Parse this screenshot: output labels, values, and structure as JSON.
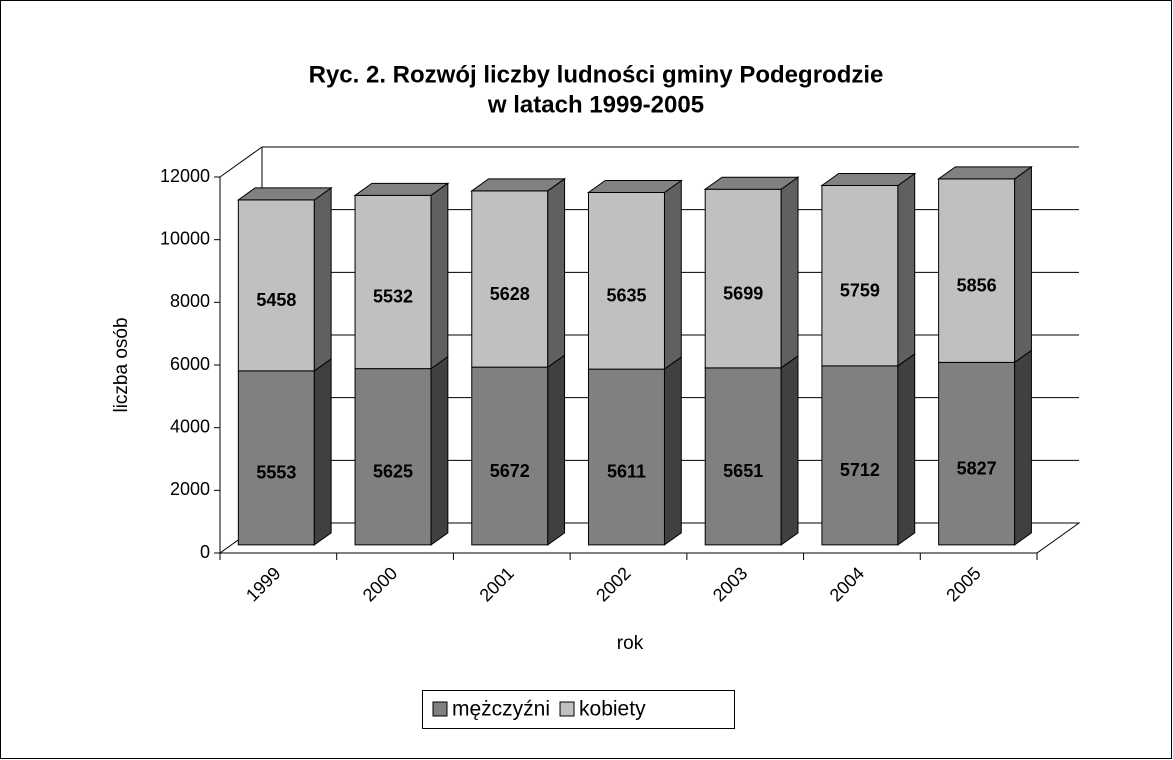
{
  "chart_data": {
    "type": "bar3d_stacked",
    "title": [
      "Ryc. 2. Rozwój liczby ludności gminy Podegrodzie",
      "w latach 1999-2005"
    ],
    "xlabel": "rok",
    "ylabel": "liczba osób",
    "categories": [
      "1999",
      "2000",
      "2001",
      "2002",
      "2003",
      "2004",
      "2005"
    ],
    "series": [
      {
        "name": "mężczyźni",
        "color": "#808080",
        "values": [
          5553,
          5625,
          5672,
          5611,
          5651,
          5712,
          5827
        ]
      },
      {
        "name": "kobiety",
        "color": "#c0c0c0",
        "values": [
          5458,
          5532,
          5628,
          5635,
          5699,
          5759,
          5856
        ]
      }
    ],
    "ylim": [
      0,
      12000
    ],
    "yticks": [
      0,
      2000,
      4000,
      6000,
      8000,
      10000,
      12000
    ],
    "grid": true,
    "legend": "bottom"
  }
}
